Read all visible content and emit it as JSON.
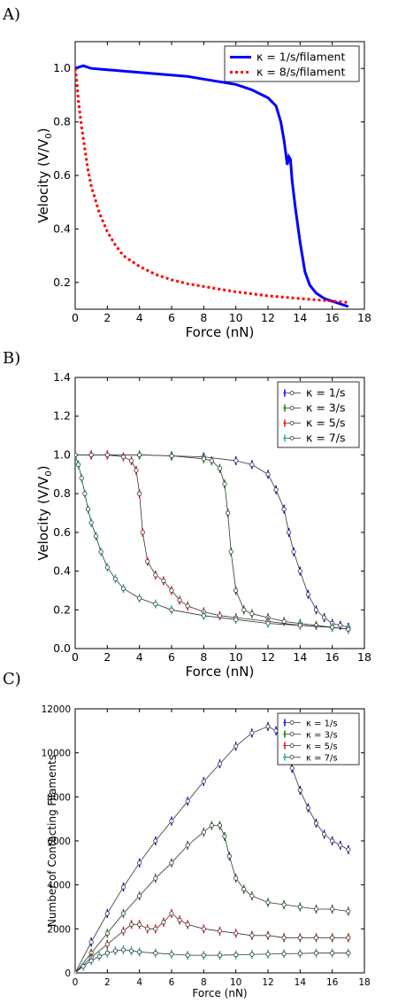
{
  "chart_data": [
    {
      "panel_label": "A)",
      "type": "line",
      "xlabel": "Force (nN)",
      "ylabel": "Velocity (V/V",
      "ylabel_sub": "0",
      "ylabel_close": ")",
      "xlim": [
        0,
        18
      ],
      "ylim": [
        0.1,
        1.1
      ],
      "xticks": [
        "0",
        "2",
        "4",
        "6",
        "8",
        "10",
        "12",
        "14",
        "16",
        "18"
      ],
      "yticks": [
        "0.2",
        "0.4",
        "0.6",
        "0.8",
        "1.0"
      ],
      "legend_position": "top-right",
      "series": [
        {
          "name": "κ = 1/s/filament",
          "color": "#0000ff",
          "style": "solid",
          "x": [
            0,
            0.5,
            1,
            2,
            3,
            4,
            5,
            6,
            7,
            8,
            9,
            10,
            10.5,
            11,
            11.5,
            12,
            12.5,
            12.8,
            13,
            13.2,
            13.3,
            13.4,
            13.5,
            13.7,
            14,
            14.3,
            14.6,
            15,
            15.5,
            16,
            16.5,
            17
          ],
          "y": [
            1.0,
            1.01,
            1.0,
            0.995,
            0.99,
            0.985,
            0.98,
            0.975,
            0.97,
            0.96,
            0.95,
            0.94,
            0.93,
            0.92,
            0.905,
            0.89,
            0.86,
            0.8,
            0.73,
            0.64,
            0.67,
            0.66,
            0.58,
            0.48,
            0.35,
            0.24,
            0.19,
            0.16,
            0.14,
            0.13,
            0.12,
            0.11
          ]
        },
        {
          "name": "κ = 8/s/filament",
          "color": "#ff0000",
          "style": "dotted",
          "x": [
            0,
            0.1,
            0.2,
            0.4,
            0.6,
            0.8,
            1,
            1.5,
            2,
            2.5,
            3,
            4,
            5,
            6,
            7,
            8,
            10,
            12,
            14,
            16,
            17
          ],
          "y": [
            1.0,
            0.95,
            0.88,
            0.78,
            0.7,
            0.62,
            0.56,
            0.46,
            0.39,
            0.34,
            0.3,
            0.26,
            0.23,
            0.21,
            0.195,
            0.185,
            0.165,
            0.15,
            0.14,
            0.13,
            0.125
          ]
        }
      ]
    },
    {
      "panel_label": "B)",
      "type": "scatter",
      "xlabel": "Force (nN)",
      "ylabel": "Velocity (V/V",
      "ylabel_sub": "0",
      "ylabel_close": ")",
      "xlim": [
        0,
        18
      ],
      "ylim": [
        0.0,
        1.4
      ],
      "xticks": [
        "0",
        "2",
        "4",
        "6",
        "8",
        "10",
        "12",
        "14",
        "16",
        "18"
      ],
      "yticks": [
        "0.0",
        "0.2",
        "0.4",
        "0.6",
        "0.8",
        "1.0",
        "1.2",
        "1.4"
      ],
      "legend_position": "top-right",
      "series": [
        {
          "name": "κ = 1/s",
          "color": "#0000ff",
          "x": [
            0,
            1,
            2,
            4,
            6,
            8,
            10,
            11,
            12,
            12.5,
            13,
            13.3,
            13.6,
            14,
            14.5,
            15,
            15.5,
            16,
            16.5,
            17
          ],
          "y": [
            1.0,
            1.0,
            1.0,
            1.0,
            0.995,
            0.99,
            0.97,
            0.95,
            0.9,
            0.82,
            0.72,
            0.6,
            0.5,
            0.4,
            0.28,
            0.2,
            0.16,
            0.13,
            0.12,
            0.11
          ]
        },
        {
          "name": "κ = 3/s",
          "color": "#008000",
          "x": [
            0,
            1,
            2,
            4,
            6,
            8,
            8.5,
            9,
            9.3,
            9.5,
            9.7,
            10,
            10.5,
            11,
            12,
            13,
            14,
            15,
            16,
            17
          ],
          "y": [
            1.0,
            1.0,
            1.0,
            1.0,
            0.995,
            0.98,
            0.97,
            0.93,
            0.85,
            0.7,
            0.5,
            0.3,
            0.2,
            0.18,
            0.16,
            0.14,
            0.13,
            0.12,
            0.11,
            0.1
          ]
        },
        {
          "name": "κ = 5/s",
          "color": "#ff0000",
          "x": [
            0,
            1,
            2,
            3,
            3.5,
            3.8,
            4,
            4.2,
            4.5,
            5,
            5.5,
            6,
            6.5,
            7,
            8,
            9,
            10,
            12,
            14,
            16,
            17
          ],
          "y": [
            1.0,
            1.0,
            1.0,
            0.99,
            0.97,
            0.92,
            0.8,
            0.6,
            0.45,
            0.38,
            0.35,
            0.3,
            0.25,
            0.22,
            0.19,
            0.17,
            0.16,
            0.14,
            0.12,
            0.11,
            0.1
          ]
        },
        {
          "name": "κ = 7/s",
          "color": "#00bfbf",
          "x": [
            0,
            0.2,
            0.4,
            0.6,
            0.8,
            1,
            1.3,
            1.6,
            2,
            2.5,
            3,
            4,
            5,
            6,
            8,
            10,
            12,
            14,
            16,
            17
          ],
          "y": [
            1.0,
            0.95,
            0.88,
            0.8,
            0.72,
            0.65,
            0.58,
            0.5,
            0.42,
            0.36,
            0.31,
            0.26,
            0.23,
            0.2,
            0.17,
            0.15,
            0.13,
            0.12,
            0.11,
            0.1
          ]
        }
      ]
    },
    {
      "panel_label": "C)",
      "type": "scatter",
      "xlabel": "Force (nN)",
      "ylabel": "Number of Contacting Filaments",
      "xlim": [
        0,
        18
      ],
      "ylim": [
        0,
        12000
      ],
      "xticks": [
        "0",
        "2",
        "4",
        "6",
        "8",
        "10",
        "12",
        "14",
        "16",
        "18"
      ],
      "yticks": [
        "0",
        "2000",
        "4000",
        "6000",
        "8000",
        "10000",
        "12000"
      ],
      "legend_position": "top-right",
      "series": [
        {
          "name": "κ = 1/s",
          "color": "#0000ff",
          "x": [
            0,
            1,
            2,
            3,
            4,
            5,
            6,
            7,
            8,
            9,
            10,
            11,
            12,
            12.5,
            13,
            13.5,
            14,
            14.5,
            15,
            15.5,
            16,
            16.5,
            17
          ],
          "y": [
            0,
            1400,
            2700,
            3900,
            5000,
            6000,
            6900,
            7800,
            8700,
            9500,
            10300,
            10900,
            11200,
            11000,
            10300,
            9300,
            8300,
            7500,
            6800,
            6300,
            6000,
            5800,
            5600
          ]
        },
        {
          "name": "κ = 3/s",
          "color": "#008000",
          "x": [
            0,
            1,
            2,
            3,
            4,
            5,
            6,
            7,
            8,
            8.5,
            9,
            9.3,
            9.6,
            10,
            10.5,
            11,
            12,
            13,
            14,
            15,
            16,
            17
          ],
          "y": [
            0,
            900,
            1800,
            2700,
            3500,
            4300,
            5000,
            5800,
            6400,
            6700,
            6700,
            6200,
            5300,
            4300,
            3800,
            3500,
            3200,
            3100,
            3000,
            2900,
            2900,
            2800
          ]
        },
        {
          "name": "κ = 5/s",
          "color": "#ff0000",
          "x": [
            0,
            1,
            2,
            3,
            3.5,
            4,
            4.5,
            5,
            5.5,
            6,
            6.5,
            7,
            8,
            9,
            10,
            11,
            12,
            13,
            14,
            15,
            16,
            17
          ],
          "y": [
            0,
            700,
            1300,
            1900,
            2200,
            2200,
            2000,
            2000,
            2300,
            2700,
            2400,
            2200,
            2000,
            1900,
            1800,
            1700,
            1700,
            1600,
            1600,
            1600,
            1600,
            1600
          ]
        },
        {
          "name": "κ = 7/s",
          "color": "#00bfbf",
          "x": [
            0,
            0.5,
            1,
            1.5,
            2,
            2.5,
            3,
            3.5,
            4,
            5,
            6,
            7,
            8,
            9,
            10,
            11,
            12,
            13,
            14,
            15,
            16,
            17
          ],
          "y": [
            0,
            300,
            550,
            750,
            900,
            1000,
            1050,
            1000,
            950,
            900,
            850,
            800,
            800,
            800,
            820,
            840,
            850,
            870,
            880,
            900,
            900,
            900
          ]
        }
      ]
    }
  ]
}
